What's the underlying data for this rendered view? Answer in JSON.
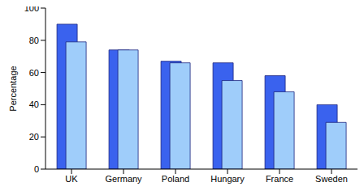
{
  "chart_data": {
    "type": "bar",
    "y_label": "Percentage",
    "categories": [
      "UK",
      "Germany",
      "Poland",
      "Hungary",
      "France",
      "Sweden"
    ],
    "series": [
      {
        "color": "#3a62ee",
        "values": [
          90,
          74,
          67,
          66,
          58,
          40
        ]
      },
      {
        "color": "#9fcdfa",
        "values": [
          79,
          74,
          66,
          55,
          48,
          29
        ]
      }
    ],
    "ylim": [
      0,
      100
    ],
    "yticks": [
      0,
      20,
      40,
      60,
      80,
      100
    ],
    "grid": false
  }
}
